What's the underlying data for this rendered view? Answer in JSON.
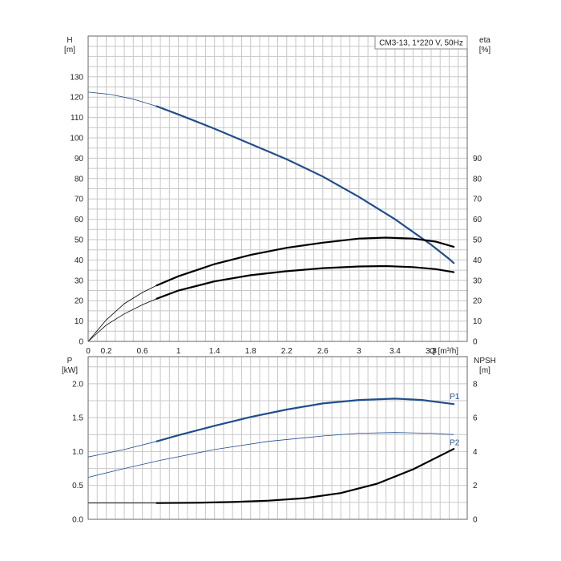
{
  "chart_data": [
    {
      "type": "line",
      "panel": "head-efficiency",
      "title": "CM3-13, 1*220 V, 50Hz",
      "xlabel": "Q [m³/h]",
      "xlim": [
        0,
        4.2
      ],
      "x_ticks": [
        0,
        0.2,
        0.6,
        1.0,
        1.4,
        1.8,
        2.2,
        2.6,
        3.0,
        3.4,
        3.8
      ],
      "ylabel_left": [
        "H",
        "[m]"
      ],
      "ylim_left": [
        0,
        150
      ],
      "y_ticks_left": [
        0,
        10,
        20,
        30,
        40,
        50,
        60,
        70,
        80,
        90,
        100,
        110,
        120,
        130
      ],
      "ylabel_right": [
        "eta",
        "[%]"
      ],
      "ylim_right": [
        0,
        150
      ],
      "y_ticks_right": [
        0,
        10,
        20,
        30,
        40,
        50,
        60,
        70,
        80,
        90
      ],
      "grid": true,
      "legend": "top-right",
      "series": [
        {
          "axis": "left",
          "color": "#1f4e8c",
          "thin": [
            [
              0,
              122.5
            ],
            [
              0.25,
              121.3
            ],
            [
              0.5,
              119
            ],
            [
              0.76,
              115.5
            ]
          ],
          "bold": [
            [
              0.76,
              115.5
            ],
            [
              1.0,
              111.5
            ],
            [
              1.4,
              104.5
            ],
            [
              1.8,
              97
            ],
            [
              2.2,
              89.5
            ],
            [
              2.6,
              81
            ],
            [
              3.0,
              71
            ],
            [
              3.4,
              60
            ],
            [
              3.8,
              47.5
            ],
            [
              4.0,
              40.5
            ],
            [
              4.05,
              38.5
            ]
          ]
        },
        {
          "axis": "right",
          "color": "#000000",
          "thin": [
            [
              0,
              0
            ],
            [
              0.2,
              10.5
            ],
            [
              0.4,
              18.5
            ],
            [
              0.6,
              24
            ],
            [
              0.76,
              27.5
            ]
          ],
          "bold": [
            [
              0.76,
              27.5
            ],
            [
              1.0,
              32
            ],
            [
              1.4,
              38
            ],
            [
              1.8,
              42.5
            ],
            [
              2.2,
              46
            ],
            [
              2.6,
              48.5
            ],
            [
              3.0,
              50.5
            ],
            [
              3.3,
              51
            ],
            [
              3.6,
              50.5
            ],
            [
              3.85,
              49
            ],
            [
              4.05,
              46.5
            ]
          ]
        },
        {
          "axis": "right",
          "color": "#000000",
          "thin": [
            [
              0,
              0
            ],
            [
              0.2,
              8
            ],
            [
              0.4,
              13.5
            ],
            [
              0.6,
              18
            ],
            [
              0.76,
              21
            ]
          ],
          "bold": [
            [
              0.76,
              21
            ],
            [
              1.0,
              25
            ],
            [
              1.4,
              29.5
            ],
            [
              1.8,
              32.5
            ],
            [
              2.2,
              34.5
            ],
            [
              2.6,
              36
            ],
            [
              3.0,
              36.8
            ],
            [
              3.3,
              37
            ],
            [
              3.6,
              36.5
            ],
            [
              3.85,
              35.5
            ],
            [
              4.05,
              34
            ]
          ]
        }
      ]
    },
    {
      "type": "line",
      "panel": "power-npsh",
      "xlim": [
        0,
        4.2
      ],
      "ylabel_left": [
        "P",
        "[kW]"
      ],
      "ylim_left": [
        0,
        2.4
      ],
      "y_ticks_left": [
        0.0,
        0.5,
        1.0,
        1.5,
        2.0
      ],
      "y_tick_labels_left": [
        "0.0",
        "0.5",
        "1.0",
        "1.5",
        "2.0"
      ],
      "ylabel_right": [
        "NPSH",
        "[m]"
      ],
      "ylim_right": [
        0,
        9.6
      ],
      "y_ticks_right": [
        0,
        2,
        4,
        6,
        8
      ],
      "grid": true,
      "series": [
        {
          "name": "P1",
          "axis": "left",
          "color": "#1f4e8c",
          "thin": [
            [
              0,
              0.92
            ],
            [
              0.4,
              1.03
            ],
            [
              0.76,
              1.15
            ]
          ],
          "bold": [
            [
              0.76,
              1.15
            ],
            [
              1.0,
              1.24
            ],
            [
              1.4,
              1.38
            ],
            [
              1.8,
              1.51
            ],
            [
              2.2,
              1.62
            ],
            [
              2.6,
              1.71
            ],
            [
              3.0,
              1.76
            ],
            [
              3.4,
              1.78
            ],
            [
              3.7,
              1.76
            ],
            [
              4.05,
              1.7
            ]
          ]
        },
        {
          "name": "P2",
          "axis": "left",
          "color": "#1f4e8c",
          "thin": [
            [
              0,
              0.62
            ],
            [
              0.4,
              0.75
            ],
            [
              0.8,
              0.87
            ],
            [
              1.4,
              1.03
            ],
            [
              2.0,
              1.15
            ],
            [
              2.6,
              1.23
            ],
            [
              3.0,
              1.27
            ],
            [
              3.4,
              1.28
            ],
            [
              3.8,
              1.27
            ],
            [
              4.05,
              1.25
            ]
          ]
        },
        {
          "axis": "right",
          "color": "#000000",
          "thin": [
            [
              0,
              0.96
            ],
            [
              0.76,
              0.96
            ]
          ],
          "bold": [
            [
              0.76,
              0.96
            ],
            [
              1.2,
              0.98
            ],
            [
              1.6,
              1.02
            ],
            [
              2.0,
              1.1
            ],
            [
              2.4,
              1.25
            ],
            [
              2.8,
              1.55
            ],
            [
              3.2,
              2.1
            ],
            [
              3.6,
              2.95
            ],
            [
              4.05,
              4.15
            ]
          ]
        }
      ]
    }
  ]
}
